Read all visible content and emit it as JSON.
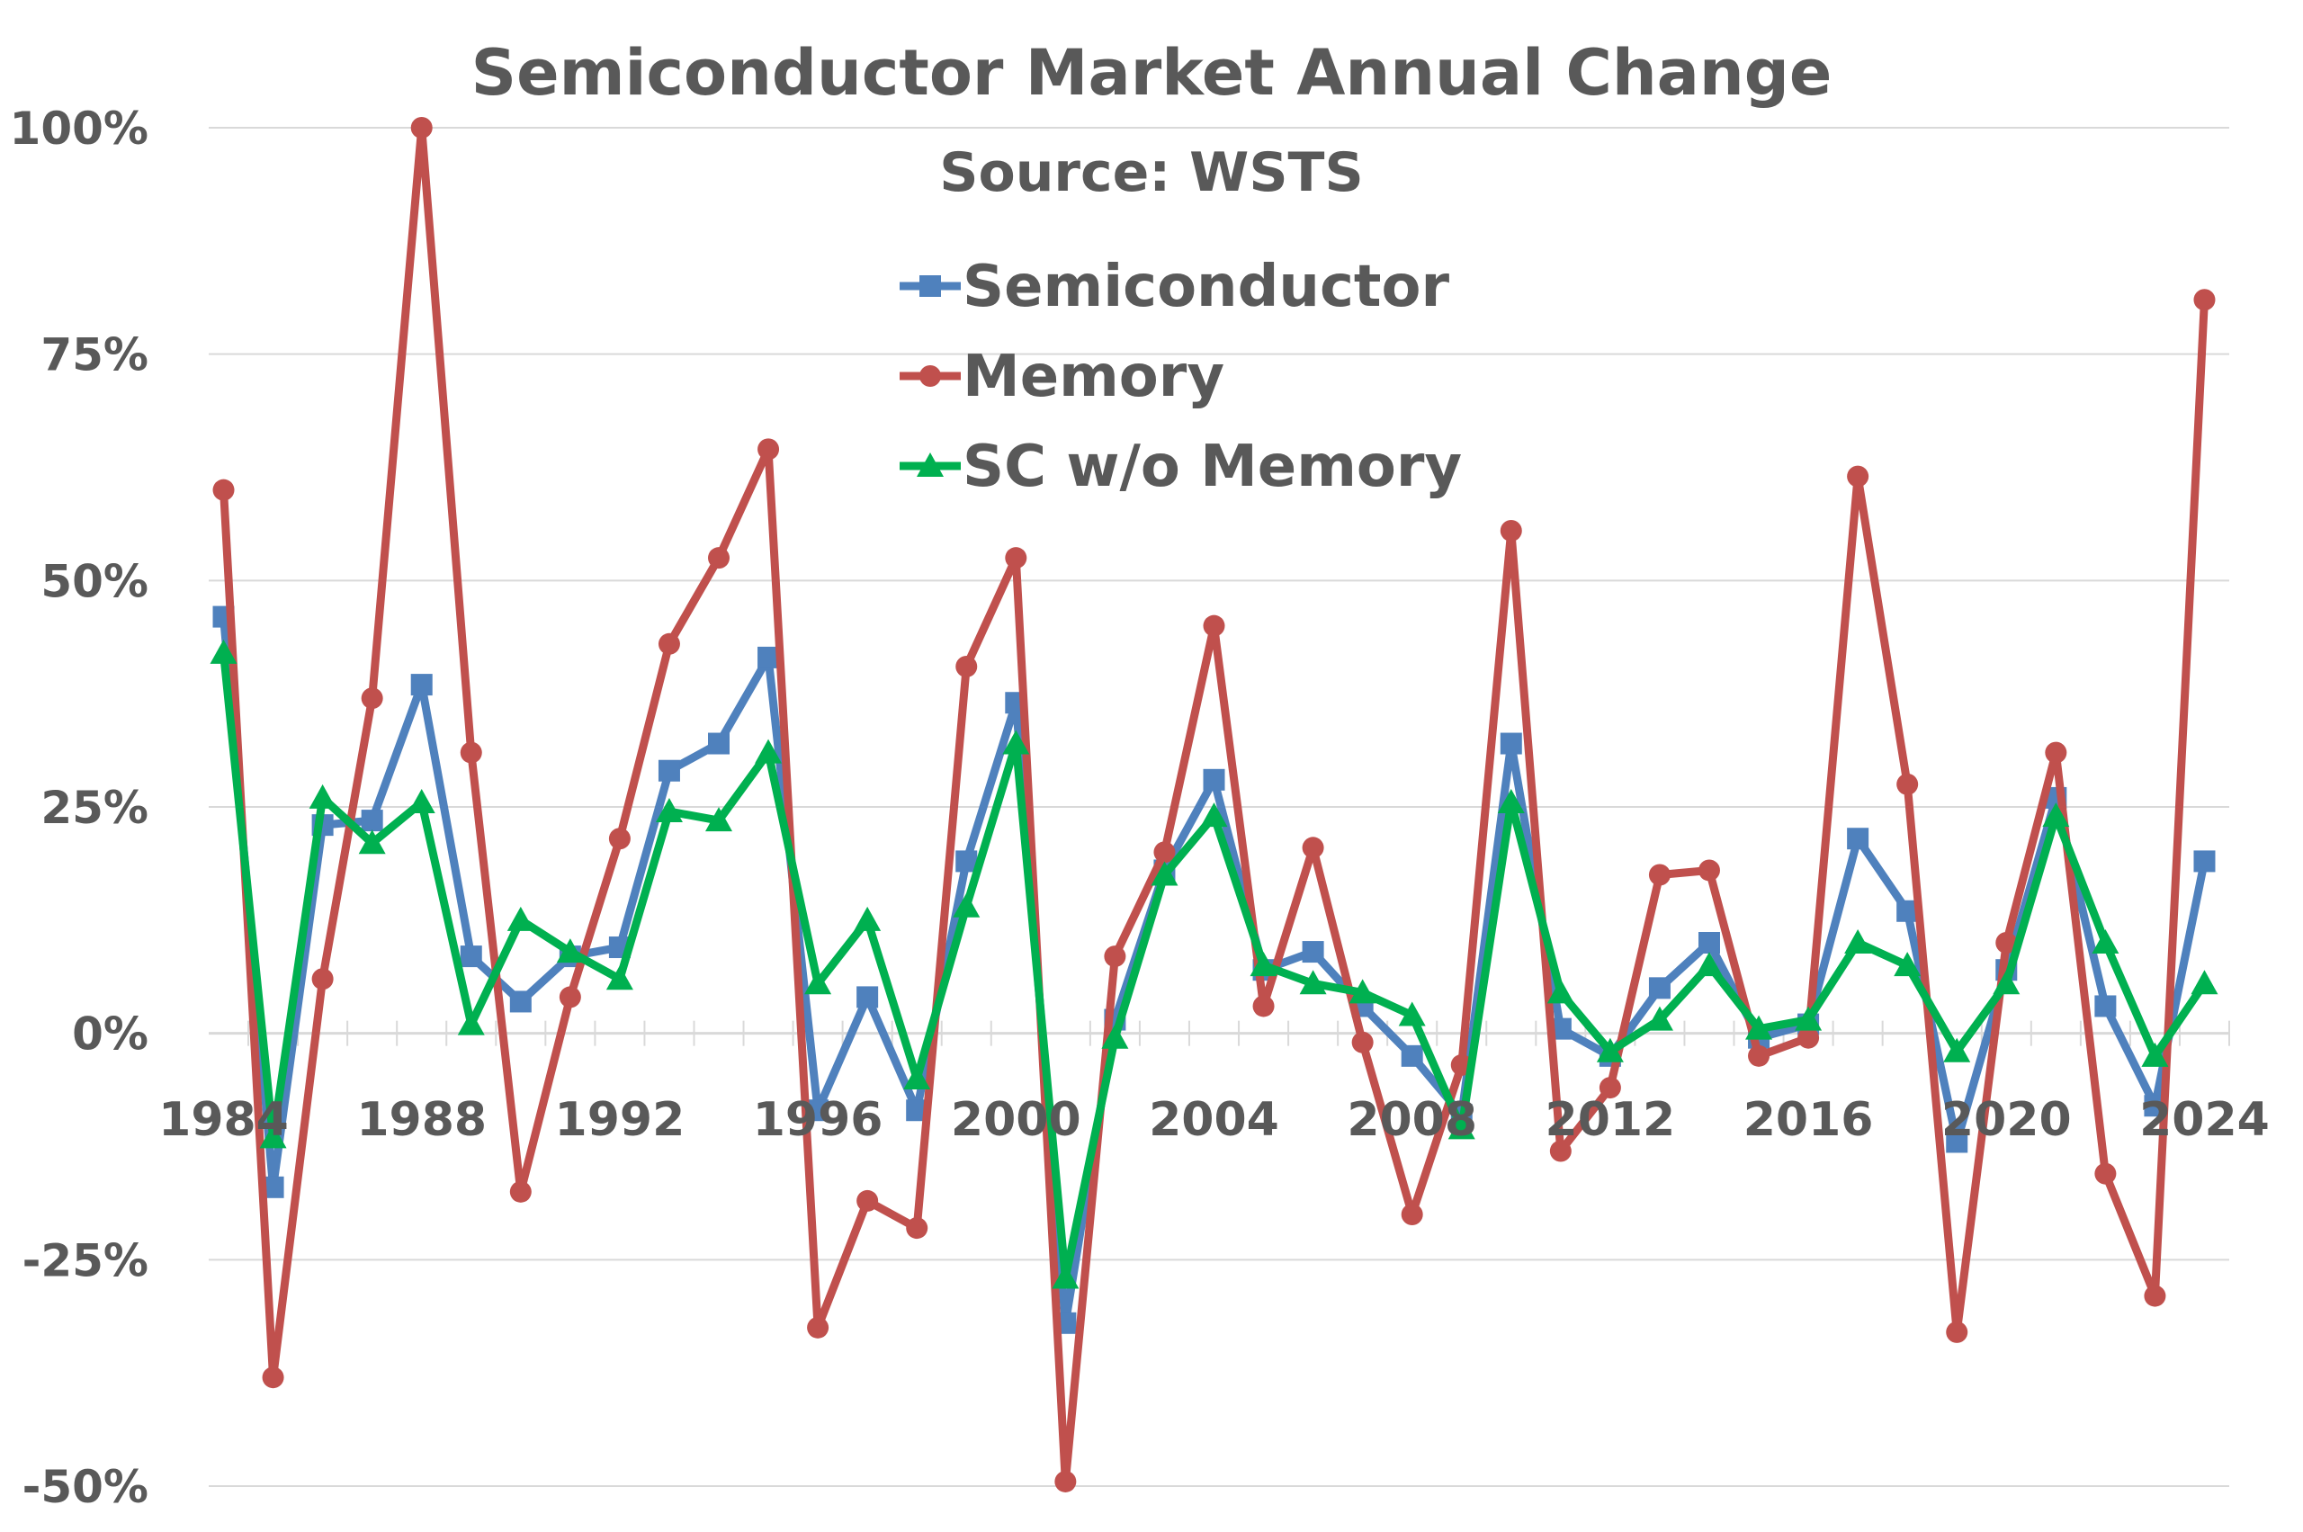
{
  "chart_data": {
    "type": "line",
    "title": "Semiconductor Market Annual Change",
    "subtitle": "Source: WSTS",
    "xlabel": "",
    "ylabel": "",
    "ylim": [
      -50,
      100
    ],
    "xlim": [
      1984,
      2024
    ],
    "grid": true,
    "legend_position": "top-center",
    "y_ticks": [
      "100%",
      "75%",
      "50%",
      "25%",
      "0%",
      "-25%",
      "-50%"
    ],
    "y_tick_values": [
      100,
      75,
      50,
      25,
      0,
      -25,
      -50
    ],
    "x_ticks": [
      "1984",
      "1988",
      "1992",
      "1996",
      "2000",
      "2004",
      "2008",
      "2012",
      "2016",
      "2020",
      "2024"
    ],
    "x_tick_values": [
      1984,
      1988,
      1992,
      1996,
      2000,
      2004,
      2008,
      2012,
      2016,
      2020,
      2024
    ],
    "x": [
      1984,
      1985,
      1986,
      1987,
      1988,
      1989,
      1990,
      1991,
      1992,
      1993,
      1994,
      1995,
      1996,
      1997,
      1998,
      1999,
      2000,
      2001,
      2002,
      2003,
      2004,
      2005,
      2006,
      2007,
      2008,
      2009,
      2010,
      2011,
      2012,
      2013,
      2014,
      2015,
      2016,
      2017,
      2018,
      2019,
      2020,
      2021,
      2022,
      2023,
      2024
    ],
    "series": [
      {
        "name": "Semiconductor",
        "color": "#4f81bd",
        "marker": "square",
        "values": [
          46,
          -17,
          23,
          23.5,
          38.5,
          8.5,
          3.5,
          8.5,
          9.5,
          29,
          32,
          41.5,
          -8.5,
          4,
          -8.5,
          19,
          36.5,
          -32,
          1.5,
          18,
          28,
          7,
          9,
          3,
          -2.5,
          -9,
          32,
          0.5,
          -2.5,
          5,
          10,
          -0.5,
          1,
          21.5,
          13.5,
          -12,
          7,
          26,
          3,
          -8,
          19
        ]
      },
      {
        "name": "Memory",
        "color": "#c0504d",
        "marker": "circle",
        "values": [
          60,
          -38,
          6,
          37,
          100,
          31,
          -17.5,
          4,
          21.5,
          43,
          52.5,
          64.5,
          -32.5,
          -18.5,
          -21.5,
          40.5,
          52.5,
          -49.5,
          8.5,
          20,
          45,
          3,
          20.5,
          -1,
          -20,
          -3.5,
          55.5,
          -13,
          -6,
          17.5,
          18,
          -2.5,
          -0.5,
          61.5,
          27.5,
          -33,
          10,
          31,
          -15.5,
          -29,
          81
        ]
      },
      {
        "name": "SC w/o Memory",
        "color": "#00b050",
        "marker": "triangle",
        "values": [
          42,
          -11.5,
          26,
          21,
          25.5,
          1,
          12.5,
          9,
          6,
          24.5,
          23.5,
          31,
          5.5,
          12.5,
          -5,
          14,
          32,
          -27,
          -0.5,
          17.5,
          24,
          7.5,
          5.5,
          4.5,
          2,
          -10.5,
          25.5,
          4.5,
          -2,
          1.5,
          7.5,
          0.5,
          1.5,
          10,
          7.5,
          -2,
          5.5,
          24,
          10,
          -2.5,
          5.5
        ]
      }
    ]
  }
}
